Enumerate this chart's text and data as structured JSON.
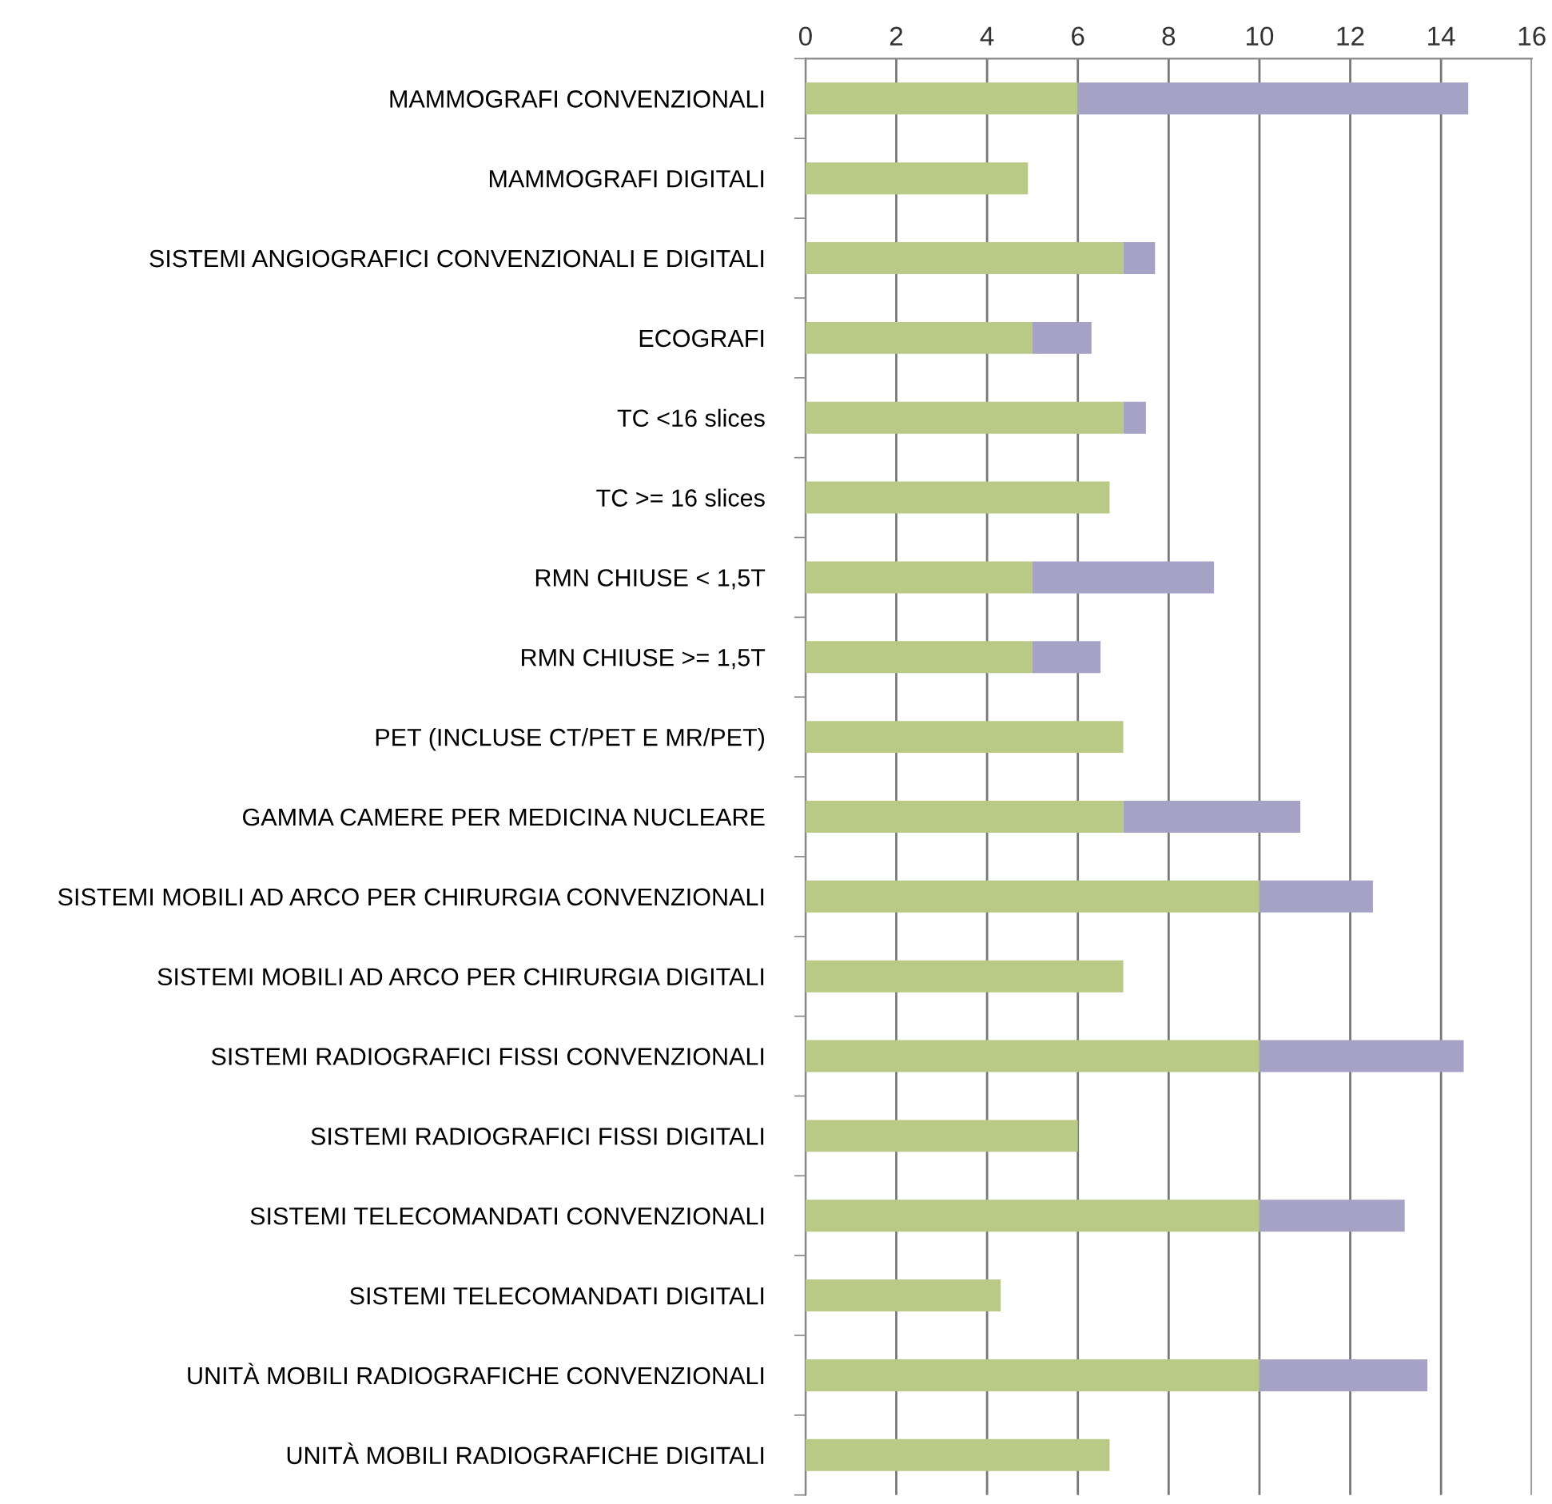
{
  "chart_data": {
    "type": "bar",
    "orientation": "horizontal",
    "stacked": true,
    "categories": [
      "MAMMOGRAFI CONVENZIONALI",
      "MAMMOGRAFI DIGITALI",
      "SISTEMI ANGIOGRAFICI CONVENZIONALI E DIGITALI",
      "ECOGRAFI",
      "TC <16 slices",
      "TC >= 16 slices",
      "RMN CHIUSE < 1,5T",
      "RMN CHIUSE >= 1,5T",
      "PET (INCLUSE CT/PET E MR/PET)",
      "GAMMA CAMERE PER MEDICINA NUCLEARE",
      "SISTEMI MOBILI AD ARCO PER CHIRURGIA CONVENZIONALI",
      "SISTEMI MOBILI AD ARCO PER CHIRURGIA DIGITALI",
      "SISTEMI RADIOGRAFICI FISSI CONVENZIONALI",
      "SISTEMI RADIOGRAFICI FISSI DIGITALI",
      "SISTEMI TELECOMANDATI CONVENZIONALI",
      "SISTEMI TELECOMANDATI DIGITALI",
      "UNITÀ MOBILI RADIOGRAFICHE CONVENZIONALI",
      "UNITÀ MOBILI RADIOGRAFICHE DIGITALI"
    ],
    "series": [
      {
        "color": "#b9c986",
        "values": [
          6,
          4.9,
          7,
          5,
          7,
          6.7,
          5,
          5,
          7,
          7,
          10,
          7,
          10,
          6,
          10,
          4.3,
          10,
          6.7
        ]
      },
      {
        "color": "#a6a2c6",
        "values": [
          8.6,
          null,
          0.7,
          1.3,
          0.5,
          null,
          4,
          1.5,
          null,
          3.9,
          2.5,
          null,
          4.5,
          null,
          3.2,
          null,
          3.7,
          null
        ]
      }
    ],
    "xlim": [
      0,
      16
    ],
    "xticks": [
      0,
      2,
      4,
      6,
      8,
      10,
      12,
      14,
      16
    ],
    "grid": "x",
    "legend": false
  }
}
